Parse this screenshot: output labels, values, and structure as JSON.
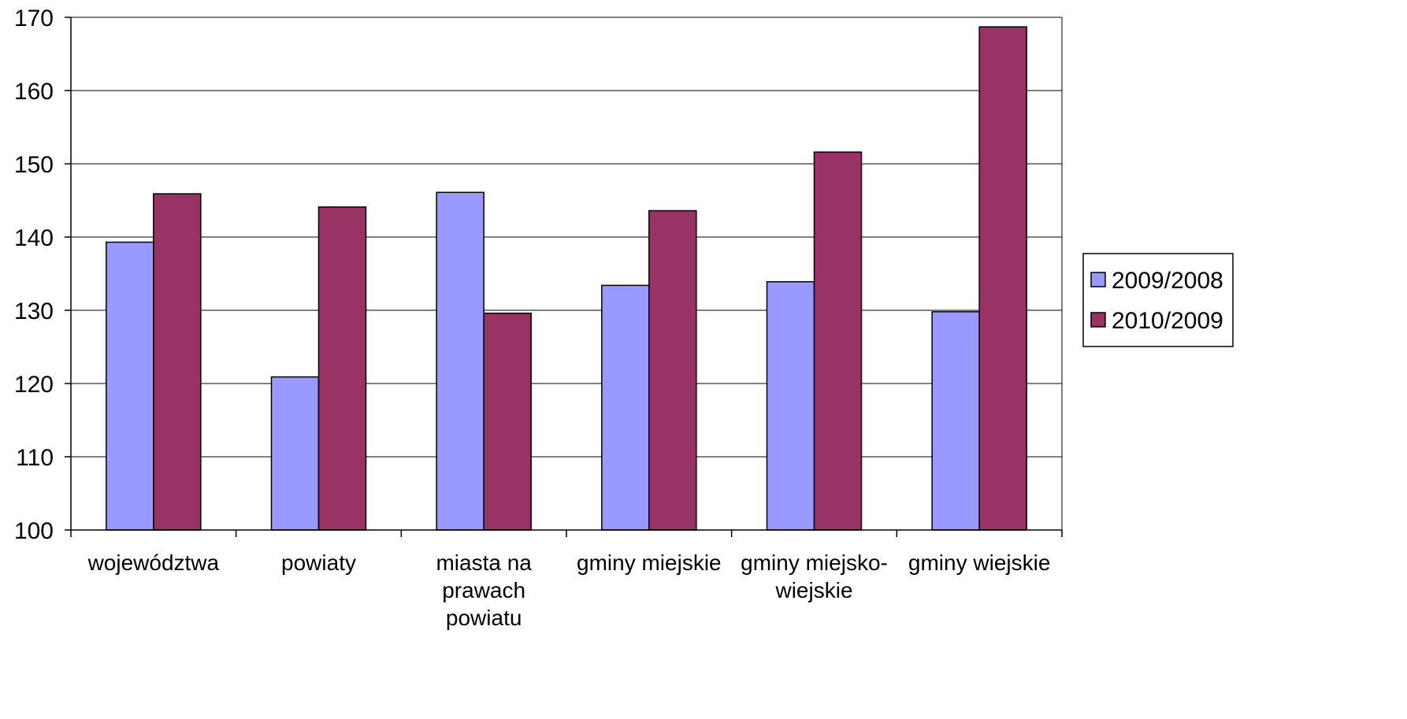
{
  "chart_data": {
    "type": "bar",
    "categories": [
      [
        "województwa"
      ],
      [
        "powiaty"
      ],
      [
        "miasta na",
        "prawach",
        "powiatu"
      ],
      [
        "gminy miejskie"
      ],
      [
        "gminy miejsko-",
        "wiejskie"
      ],
      [
        "gminy wiejskie"
      ]
    ],
    "series": [
      {
        "name": "2009/2008",
        "color": "#9999FF",
        "values": [
          139.3,
          120.9,
          146.1,
          133.4,
          133.9,
          129.8
        ]
      },
      {
        "name": "2010/2009",
        "color": "#993366",
        "values": [
          145.9,
          144.1,
          129.6,
          143.6,
          151.6,
          168.7
        ]
      }
    ],
    "ylim": [
      100,
      170
    ],
    "yticks": [
      100,
      110,
      120,
      130,
      140,
      150,
      160,
      170
    ],
    "grid": true,
    "legend_position": "right"
  }
}
